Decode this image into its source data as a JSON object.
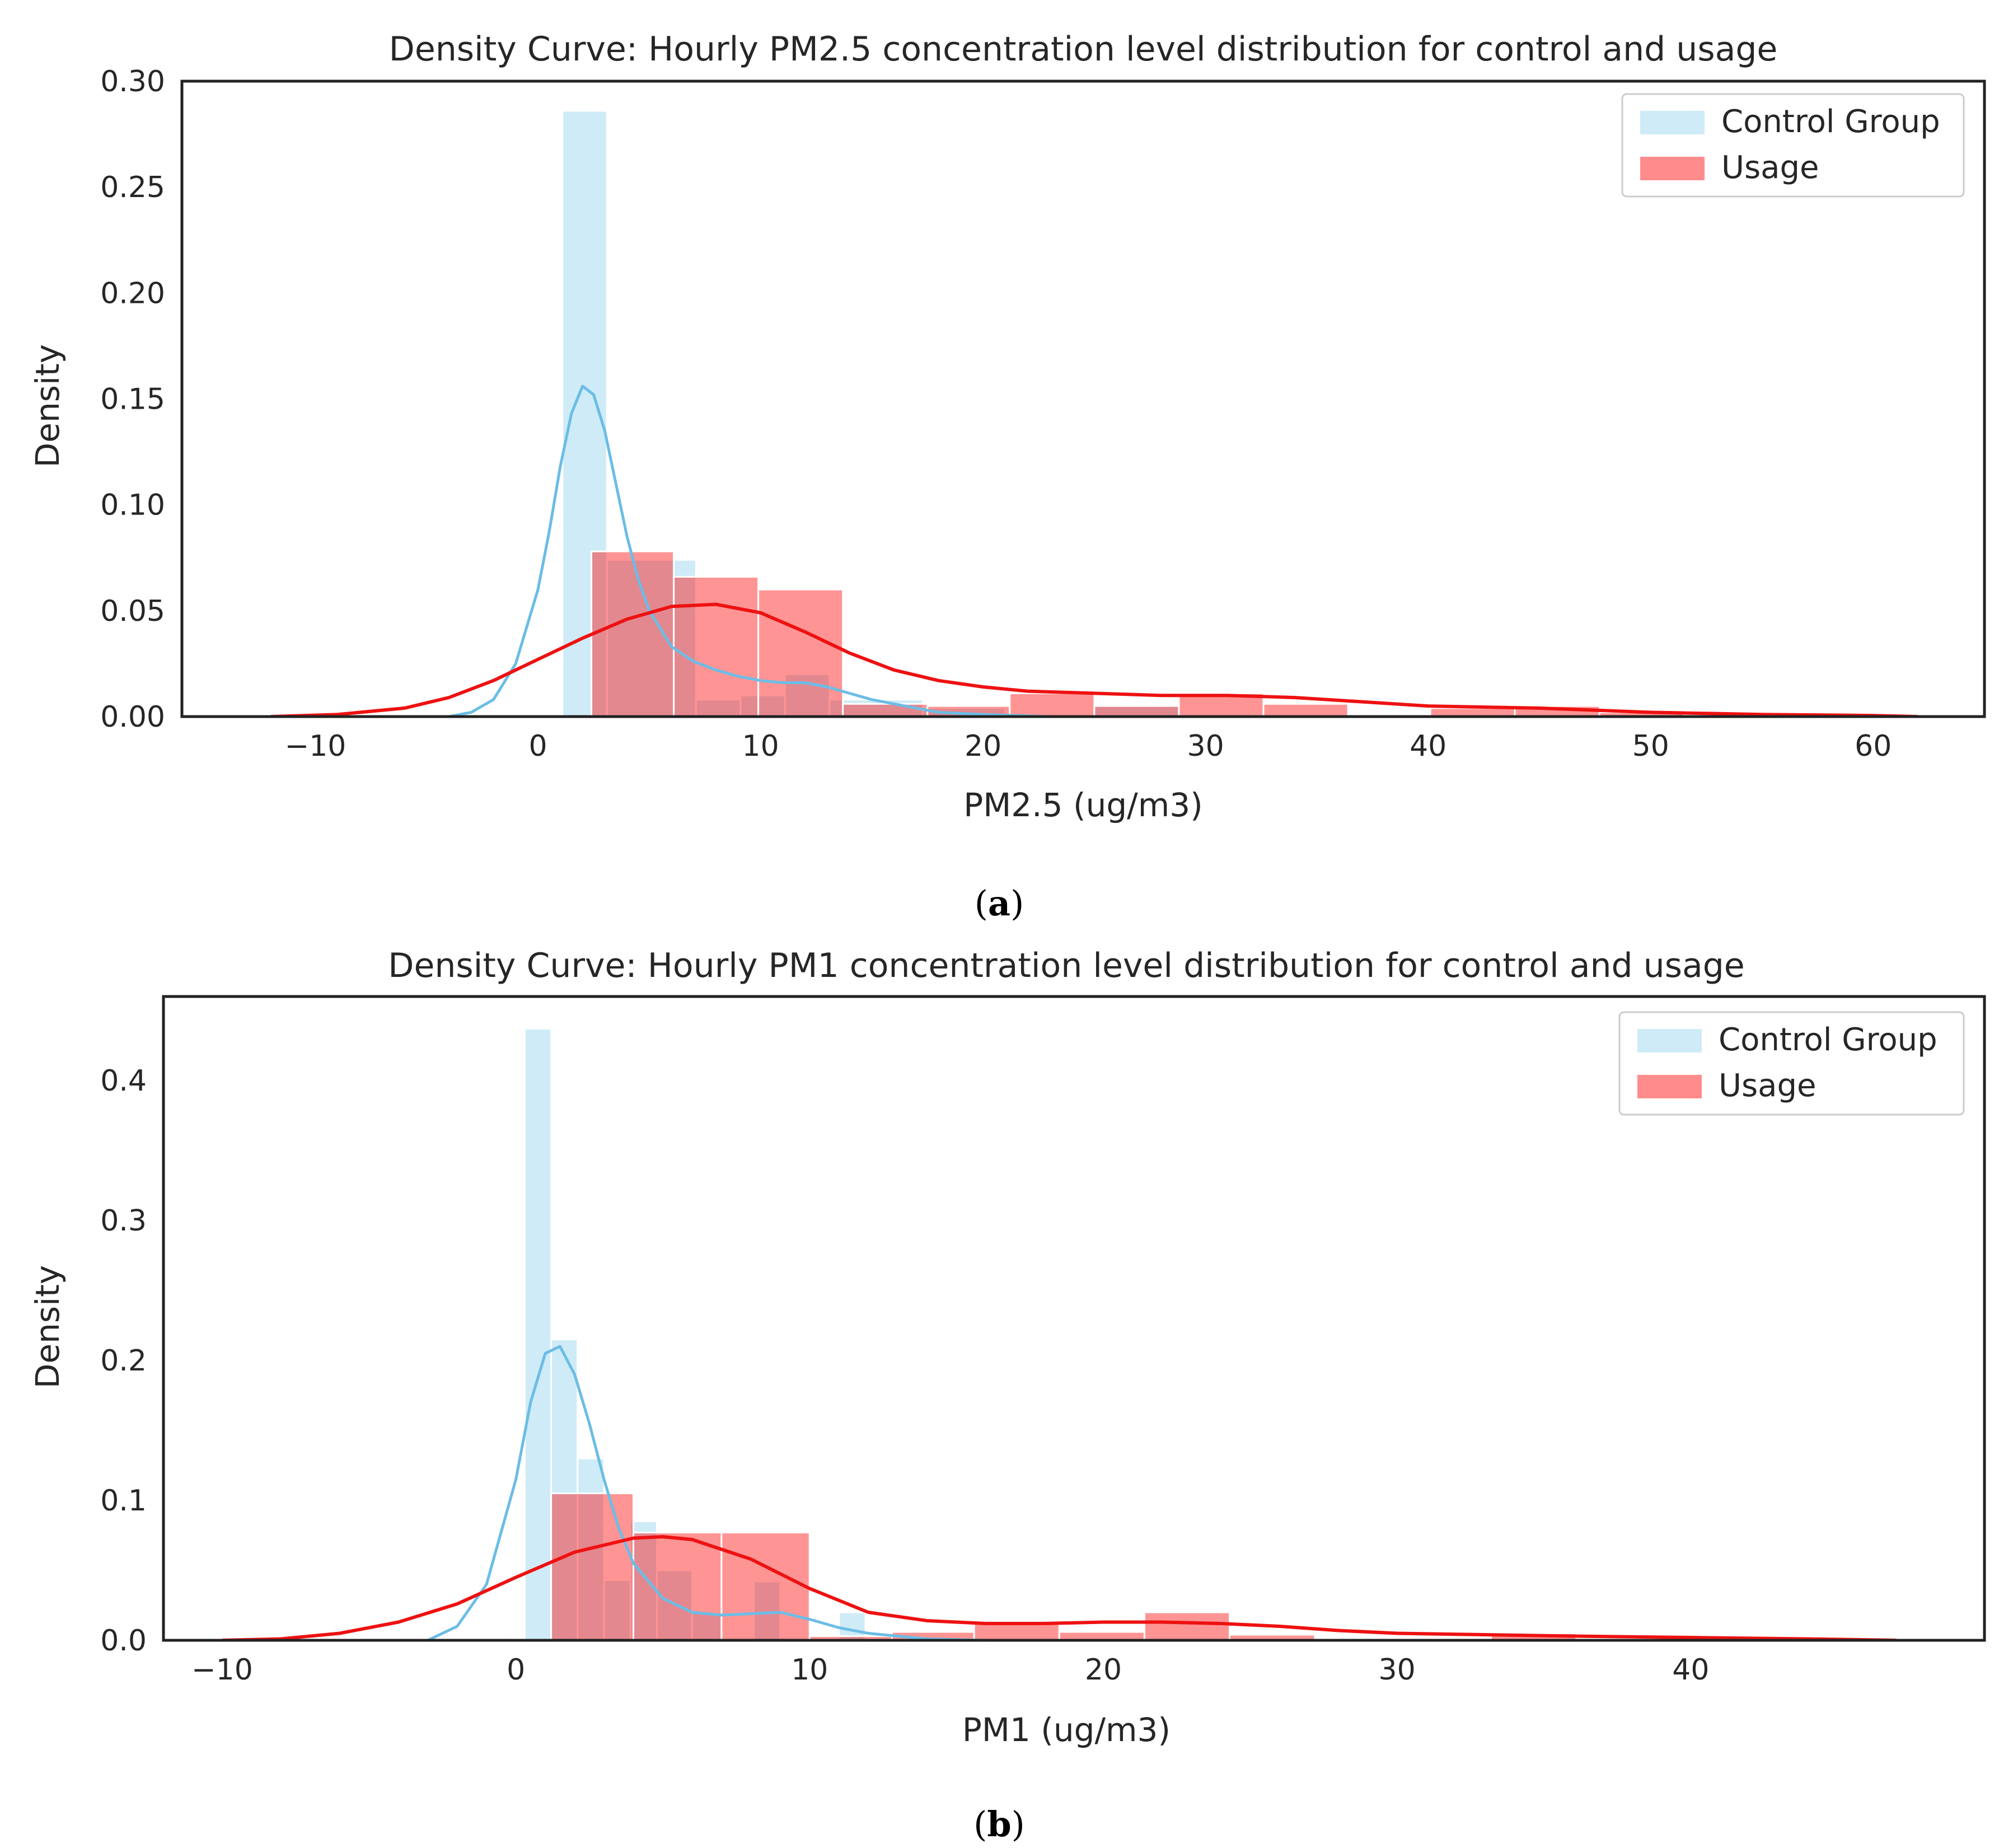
{
  "colors": {
    "control_fill": "#87ceeb",
    "control_line": "#6bbde6",
    "usage_fill": "#ff0000",
    "usage_line": "#ee1111",
    "frame": "#222222"
  },
  "legend_labels": [
    "Control Group",
    "Usage"
  ],
  "chart_data": [
    {
      "type": "histogram+kde",
      "caption": "a",
      "title": "Density Curve: Hourly PM2.5 concentration level distribution for control and usage",
      "xlabel": "PM2.5 (ug/m3)",
      "ylabel": "Density",
      "xlim": [
        -16,
        65
      ],
      "ylim": [
        0,
        0.3
      ],
      "xticks": [
        -10,
        0,
        10,
        20,
        30,
        40,
        50,
        60
      ],
      "yticks": [
        0.0,
        0.05,
        0.1,
        0.15,
        0.2,
        0.25,
        0.3
      ],
      "xtick_labels": [
        "−10",
        "0",
        "10",
        "20",
        "30",
        "40",
        "50",
        "60"
      ],
      "ytick_labels": [
        "0.00",
        "0.05",
        "0.10",
        "0.15",
        "0.20",
        "0.25",
        "0.30"
      ],
      "legend_position": "top-right",
      "series": [
        {
          "name": "Control Group",
          "hist": [
            {
              "x0": 1.1,
              "x1": 3.1,
              "value": 0.286
            },
            {
              "x0": 3.1,
              "x1": 6.1,
              "value": 0.074
            },
            {
              "x0": 6.1,
              "x1": 7.1,
              "value": 0.074
            },
            {
              "x0": 7.1,
              "x1": 9.1,
              "value": 0.008
            },
            {
              "x0": 9.1,
              "x1": 11.1,
              "value": 0.01
            },
            {
              "x0": 11.1,
              "x1": 13.1,
              "value": 0.02
            },
            {
              "x0": 13.1,
              "x1": 17.3,
              "value": 0.008
            },
            {
              "x0": 17.3,
              "x1": 21.0,
              "value": 0.004
            },
            {
              "x0": 25.0,
              "x1": 28.8,
              "value": 0.005
            }
          ],
          "kde": {
            "x": [
              -4,
              -3,
              -2,
              -1,
              0,
              0.5,
              1,
              1.5,
              2,
              2.5,
              3,
              3.5,
              4,
              4.5,
              5,
              6,
              7,
              8,
              9,
              10,
              11,
              12,
              13,
              14,
              15,
              16,
              17,
              18,
              20,
              23
            ],
            "y": [
              0.0,
              0.002,
              0.008,
              0.025,
              0.06,
              0.087,
              0.118,
              0.143,
              0.156,
              0.152,
              0.135,
              0.11,
              0.085,
              0.065,
              0.05,
              0.033,
              0.026,
              0.022,
              0.019,
              0.017,
              0.016,
              0.016,
              0.014,
              0.011,
              0.008,
              0.006,
              0.004,
              0.002,
              0.001,
              0.0
            ]
          }
        },
        {
          "name": "Usage",
          "hist": [
            {
              "x0": 2.4,
              "x1": 6.1,
              "value": 0.078
            },
            {
              "x0": 6.1,
              "x1": 9.9,
              "value": 0.066
            },
            {
              "x0": 9.9,
              "x1": 13.7,
              "value": 0.06
            },
            {
              "x0": 13.7,
              "x1": 17.5,
              "value": 0.006
            },
            {
              "x0": 17.5,
              "x1": 21.2,
              "value": 0.005
            },
            {
              "x0": 21.2,
              "x1": 25.0,
              "value": 0.011
            },
            {
              "x0": 25.0,
              "x1": 28.8,
              "value": 0.005
            },
            {
              "x0": 28.8,
              "x1": 32.6,
              "value": 0.011
            },
            {
              "x0": 32.6,
              "x1": 36.4,
              "value": 0.006
            },
            {
              "x0": 40.1,
              "x1": 43.9,
              "value": 0.004
            },
            {
              "x0": 43.9,
              "x1": 47.7,
              "value": 0.005
            },
            {
              "x0": 47.7,
              "x1": 51.5,
              "value": 0.002
            }
          ],
          "kde": {
            "x": [
              -12,
              -9,
              -6,
              -4,
              -2,
              0,
              2,
              4,
              6,
              8,
              10,
              12,
              14,
              16,
              18,
              20,
              22,
              25,
              28,
              31,
              34,
              37,
              40,
              45,
              50,
              55,
              60,
              62
            ],
            "y": [
              0.0,
              0.001,
              0.004,
              0.009,
              0.017,
              0.027,
              0.037,
              0.046,
              0.052,
              0.053,
              0.049,
              0.04,
              0.03,
              0.022,
              0.017,
              0.014,
              0.012,
              0.011,
              0.01,
              0.01,
              0.009,
              0.007,
              0.005,
              0.004,
              0.002,
              0.001,
              0.0005,
              0.0
            ]
          }
        }
      ]
    },
    {
      "type": "histogram+kde",
      "caption": "b",
      "title": "Density Curve: Hourly PM1 concentration level distribution for control and usage",
      "xlabel": "PM1 (ug/m3)",
      "ylabel": "Density",
      "xlim": [
        -12,
        50
      ],
      "ylim": [
        0,
        0.46
      ],
      "xticks": [
        -10,
        0,
        10,
        20,
        30,
        40
      ],
      "yticks": [
        0.0,
        0.1,
        0.2,
        0.3,
        0.4
      ],
      "xtick_labels": [
        "−10",
        "0",
        "10",
        "20",
        "30",
        "40"
      ],
      "ytick_labels": [
        "0.0",
        "0.1",
        "0.2",
        "0.3",
        "0.4"
      ],
      "legend_position": "top-right",
      "series": [
        {
          "name": "Control Group",
          "hist": [
            {
              "x0": 0.3,
              "x1": 1.2,
              "value": 0.437
            },
            {
              "x0": 1.2,
              "x1": 2.1,
              "value": 0.215
            },
            {
              "x0": 2.1,
              "x1": 3.0,
              "value": 0.13
            },
            {
              "x0": 3.0,
              "x1": 3.9,
              "value": 0.043
            },
            {
              "x0": 3.9,
              "x1": 4.8,
              "value": 0.085
            },
            {
              "x0": 4.8,
              "x1": 6.0,
              "value": 0.05
            },
            {
              "x0": 6.0,
              "x1": 7.0,
              "value": 0.02
            },
            {
              "x0": 8.1,
              "x1": 9.0,
              "value": 0.042
            },
            {
              "x0": 11.0,
              "x1": 11.9,
              "value": 0.02
            }
          ],
          "kde": {
            "x": [
              -3,
              -2,
              -1,
              0,
              0.5,
              1,
              1.5,
              2,
              2.5,
              3,
              3.5,
              4,
              5,
              6,
              7,
              8,
              9,
              10,
              11,
              12,
              13,
              14,
              16
            ],
            "y": [
              0.0,
              0.01,
              0.04,
              0.115,
              0.17,
              0.205,
              0.21,
              0.19,
              0.155,
              0.115,
              0.08,
              0.055,
              0.03,
              0.02,
              0.018,
              0.019,
              0.02,
              0.015,
              0.009,
              0.005,
              0.003,
              0.001,
              0.0
            ]
          }
        },
        {
          "name": "Usage",
          "hist": [
            {
              "x0": 1.2,
              "x1": 4.0,
              "value": 0.105
            },
            {
              "x0": 4.0,
              "x1": 7.0,
              "value": 0.077
            },
            {
              "x0": 7.0,
              "x1": 10.0,
              "value": 0.077
            },
            {
              "x0": 10.0,
              "x1": 12.8,
              "value": 0.003
            },
            {
              "x0": 12.8,
              "x1": 15.6,
              "value": 0.006
            },
            {
              "x0": 15.6,
              "x1": 18.5,
              "value": 0.012
            },
            {
              "x0": 18.5,
              "x1": 21.4,
              "value": 0.006
            },
            {
              "x0": 21.4,
              "x1": 24.3,
              "value": 0.02
            },
            {
              "x0": 24.3,
              "x1": 27.2,
              "value": 0.004
            },
            {
              "x0": 33.2,
              "x1": 36.1,
              "value": 0.005
            }
          ],
          "kde": {
            "x": [
              -10,
              -8,
              -6,
              -4,
              -2,
              0,
              2,
              4,
              5,
              6,
              8,
              10,
              12,
              14,
              16,
              18,
              20,
              22,
              24,
              26,
              28,
              30,
              33,
              36,
              40,
              44,
              47
            ],
            "y": [
              0.0,
              0.001,
              0.005,
              0.013,
              0.026,
              0.045,
              0.063,
              0.073,
              0.074,
              0.072,
              0.058,
              0.037,
              0.02,
              0.014,
              0.012,
              0.012,
              0.013,
              0.013,
              0.012,
              0.01,
              0.007,
              0.005,
              0.004,
              0.003,
              0.002,
              0.001,
              0.0
            ]
          }
        }
      ]
    }
  ]
}
